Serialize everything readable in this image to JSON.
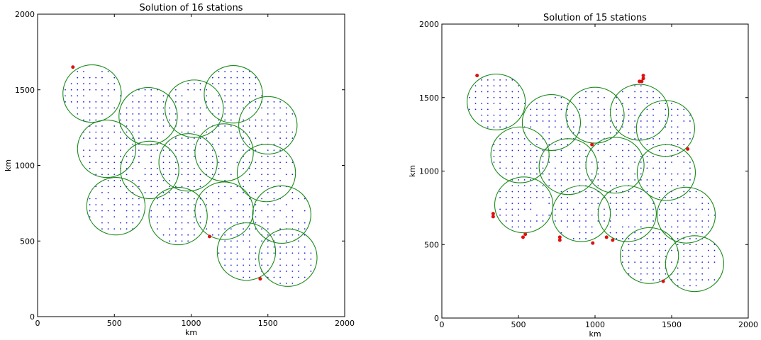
{
  "chart_data": [
    {
      "type": "scatter",
      "title": "Solution of 16 stations",
      "xlabel": "km",
      "ylabel": "km",
      "xlim": [
        0,
        2000
      ],
      "ylim": [
        0,
        2000
      ],
      "xticks": [
        0,
        500,
        1000,
        1500,
        2000
      ],
      "yticks": [
        0,
        500,
        1000,
        1500,
        2000
      ],
      "grid": false,
      "station_radius_km": 190,
      "colors": {
        "demand": "#1f1fe0",
        "station": "#1a8a1a",
        "uncovered": "#e01010"
      },
      "stations": [
        [
          355,
          1475
        ],
        [
          720,
          1325
        ],
        [
          1020,
          1375
        ],
        [
          1275,
          1470
        ],
        [
          1500,
          1265
        ],
        [
          450,
          1110
        ],
        [
          730,
          970
        ],
        [
          980,
          1020
        ],
        [
          1215,
          1085
        ],
        [
          1490,
          950
        ],
        [
          510,
          730
        ],
        [
          915,
          665
        ],
        [
          1215,
          700
        ],
        [
          1590,
          675
        ],
        [
          1360,
          430
        ],
        [
          1630,
          390
        ]
      ],
      "uncovered_points": [
        [
          230,
          1650
        ],
        [
          1120,
          530
        ],
        [
          1450,
          250
        ]
      ]
    },
    {
      "type": "scatter",
      "title": "Solution of 15 stations",
      "xlabel": "km",
      "ylabel": "km",
      "xlim": [
        0,
        2000
      ],
      "ylim": [
        0,
        2000
      ],
      "xticks": [
        0,
        500,
        1000,
        1500,
        2000
      ],
      "yticks": [
        0,
        500,
        1000,
        1500,
        2000
      ],
      "grid": false,
      "station_radius_km": 190,
      "colors": {
        "demand": "#1f1fe0",
        "station": "#1a8a1a",
        "uncovered": "#e01010"
      },
      "stations": [
        [
          355,
          1470
        ],
        [
          715,
          1330
        ],
        [
          1000,
          1380
        ],
        [
          1290,
          1400
        ],
        [
          1460,
          1290
        ],
        [
          510,
          1110
        ],
        [
          825,
          1030
        ],
        [
          1130,
          1040
        ],
        [
          1465,
          990
        ],
        [
          535,
          770
        ],
        [
          910,
          710
        ],
        [
          1210,
          710
        ],
        [
          1595,
          700
        ],
        [
          1355,
          425
        ],
        [
          1650,
          370
        ]
      ],
      "uncovered_points": [
        [
          230,
          1650
        ],
        [
          335,
          710
        ],
        [
          335,
          690
        ],
        [
          530,
          550
        ],
        [
          545,
          570
        ],
        [
          770,
          550
        ],
        [
          770,
          530
        ],
        [
          980,
          1180
        ],
        [
          985,
          510
        ],
        [
          1075,
          550
        ],
        [
          1115,
          530
        ],
        [
          1290,
          1610
        ],
        [
          1305,
          1610
        ],
        [
          1315,
          1650
        ],
        [
          1315,
          1630
        ],
        [
          1605,
          1150
        ],
        [
          1445,
          250
        ]
      ]
    }
  ]
}
